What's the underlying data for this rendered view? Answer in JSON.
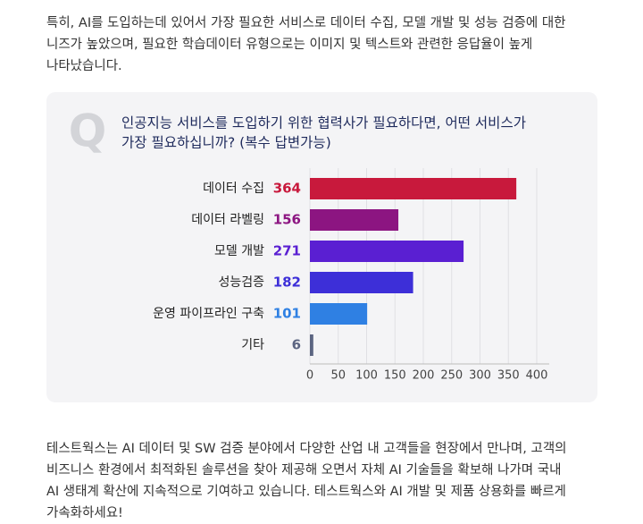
{
  "intro": [
    "특히, AI를 도입하는데 있어서 가장 필요한 서비스로 데이터 수집, 모델 개발 및 성능 검증에 대한",
    "니즈가 높았으며, 필요한 학습데이터 유형으로는 이미지 및 텍스트와 관련한 응답율이 높게",
    "나타났습니다."
  ],
  "chart_data": {
    "type": "hbar",
    "icon": "Q",
    "title": [
      "인공지능 서비스를 도입하기 위한 협력사가 필요하다면, 어떤 서비스가",
      "가장 필요하십니까? (복수 답변가능)"
    ],
    "categories": [
      "데이터 수집",
      "데이터 라벨링",
      "모델 개발",
      "성능검증",
      "운영 파이프라인 구축",
      "기타"
    ],
    "values": [
      364,
      156,
      271,
      182,
      101,
      6
    ],
    "colors": [
      "#c8193c",
      "#8c1581",
      "#5a1fd2",
      "#3d2fd8",
      "#2f80e3",
      "#5b6481"
    ],
    "xlim": [
      0,
      400
    ],
    "xticks": [
      0,
      50,
      100,
      150,
      200,
      250,
      300,
      350,
      400
    ],
    "grid": true
  },
  "outro": [
    "테스트웍스는 AI 데이터 및 SW 검증 분야에서 다양한 산업 내 고객들을 현장에서 만나며, 고객의",
    "비즈니스 환경에서 최적화된 솔루션을 찾아 제공해 오면서 자체 AI 기술들을 확보해 나가며 국내",
    "AI 생태계 확산에 지속적으로 기여하고 있습니다. 테스트웍스와 AI 개발 및 제품 상용화를 빠르게",
    "가속화하세요!"
  ]
}
